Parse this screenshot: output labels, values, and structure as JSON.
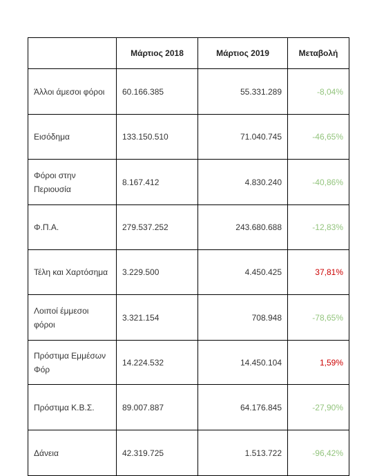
{
  "table": {
    "headers": [
      "",
      "Μάρτιος 2018",
      "Μάρτιος 2019",
      "Μεταβολή"
    ],
    "rows": [
      {
        "label": "Άλλοι άμεσοι φόροι",
        "y2018": "60.166.385",
        "y2019": "55.331.289",
        "change": "-8,04%",
        "direction": "down"
      },
      {
        "label": "Εισόδημα",
        "y2018": "133.150.510",
        "y2019": "71.040.745",
        "change": "-46,65%",
        "direction": "down"
      },
      {
        "label": "Φόροι στην Περιουσία",
        "y2018": "8.167.412",
        "y2019": "4.830.240",
        "change": "-40,86%",
        "direction": "down"
      },
      {
        "label": "Φ.Π.Α.",
        "y2018": "279.537.252",
        "y2019": "243.680.688",
        "change": "-12,83%",
        "direction": "down"
      },
      {
        "label": "Τέλη και Χαρτόσημα",
        "y2018": "3.229.500",
        "y2019": "4.450.425",
        "change": "37,81%",
        "direction": "up"
      },
      {
        "label": "Λοιποί έμμεσοι φόροι",
        "y2018": "3.321.154",
        "y2019": "708.948",
        "change": "-78,65%",
        "direction": "down"
      },
      {
        "label": "Πρόστιμα Εμμέσων Φόρ",
        "y2018": "14.224.532",
        "y2019": "14.450.104",
        "change": "1,59%",
        "direction": "up"
      },
      {
        "label": "Πρόστιμα Κ.Β.Σ.",
        "y2018": "89.007.887",
        "y2019": "64.176.845",
        "change": "-27,90%",
        "direction": "down"
      },
      {
        "label": "Δάνεια",
        "y2018": "42.319.725",
        "y2019": "1.513.722",
        "change": "-96,42%",
        "direction": "down"
      }
    ]
  },
  "colors": {
    "negative": "#93c47d",
    "positive": "#cc0000"
  }
}
